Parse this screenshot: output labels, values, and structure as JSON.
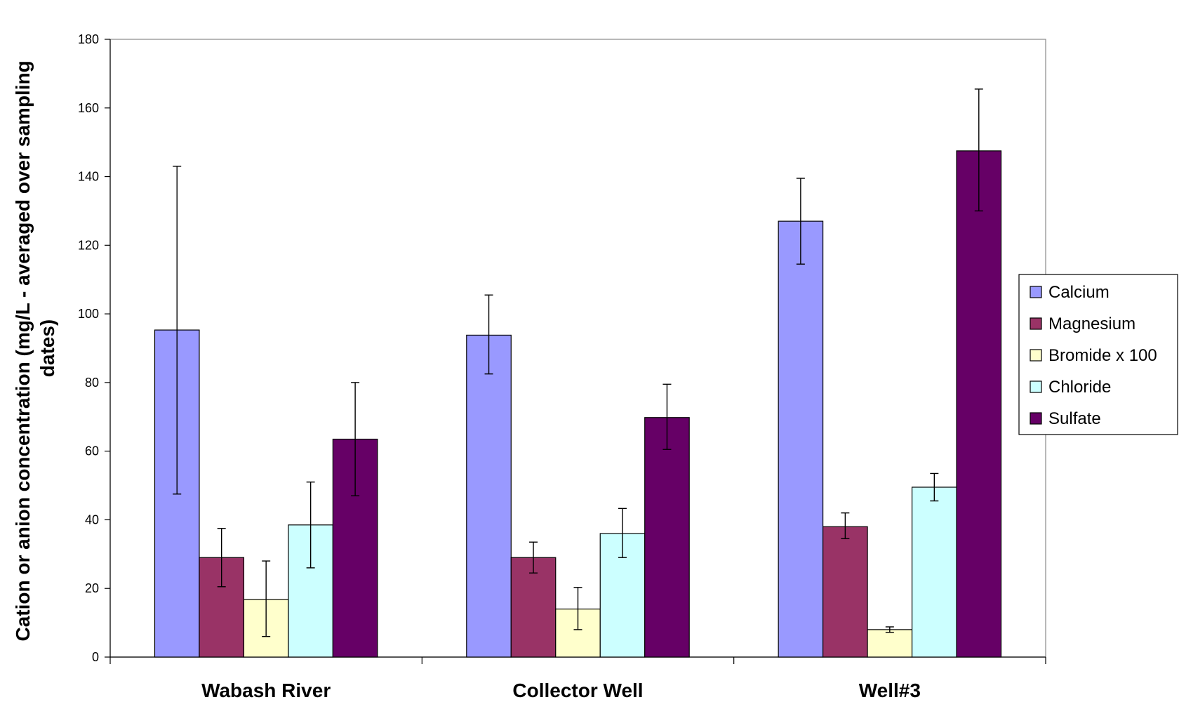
{
  "chart_data": {
    "type": "bar",
    "title": "",
    "xlabel": "",
    "ylabel_lines": [
      "Cation or anion concentration (mg/L - averaged over sampling",
      "dates)"
    ],
    "ylim": [
      0,
      180
    ],
    "yticks": [
      0,
      20,
      40,
      60,
      80,
      100,
      120,
      140,
      160,
      180
    ],
    "grid": false,
    "legend_position": "right",
    "categories": [
      "Wabash River",
      "Collector Well",
      "Well#3"
    ],
    "series": [
      {
        "name": "Calcium",
        "color": "#9999ff",
        "values": [
          95.3,
          93.8,
          127
        ],
        "err_low": [
          47.5,
          82.5,
          114.5
        ],
        "err_high": [
          143,
          105.5,
          139.5
        ]
      },
      {
        "name": "Magnesium",
        "color": "#993366",
        "values": [
          29,
          29,
          38
        ],
        "err_low": [
          20.5,
          24.5,
          34.5
        ],
        "err_high": [
          37.5,
          33.5,
          42
        ]
      },
      {
        "name": "Bromide x 100",
        "color": "#ffffcc",
        "values": [
          16.8,
          14,
          8
        ],
        "err_low": [
          6,
          8,
          7.2
        ],
        "err_high": [
          28,
          20.3,
          8.8
        ]
      },
      {
        "name": "Chloride",
        "color": "#ccffff",
        "values": [
          38.5,
          36,
          49.5
        ],
        "err_low": [
          26,
          29,
          45.5
        ],
        "err_high": [
          51,
          43.3,
          53.5
        ]
      },
      {
        "name": "Sulfate",
        "color": "#660066",
        "values": [
          63.5,
          69.8,
          147.5
        ],
        "err_low": [
          47,
          60.5,
          130
        ],
        "err_high": [
          80,
          79.5,
          165.5
        ]
      }
    ]
  }
}
